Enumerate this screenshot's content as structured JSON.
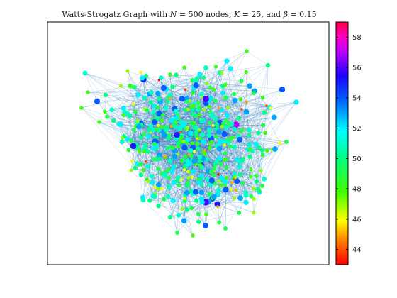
{
  "chart_data": {
    "type": "network-graph",
    "title": "Watts-Strogatz Graph with N = 500 nodes, K = 25, and β = 0.15",
    "parameters": {
      "N": 500,
      "K": 25,
      "beta": 0.15
    },
    "node_attribute": "degree",
    "colorbar": {
      "range": [
        43,
        59
      ],
      "ticks": [
        44,
        46,
        48,
        50,
        52,
        54,
        56,
        58
      ],
      "tick_labels": [
        "44",
        "46",
        "48",
        "50",
        "52",
        "54",
        "56",
        "58"
      ],
      "colormap": "hsv",
      "placement": "right"
    },
    "axes": {
      "show_ticks": false,
      "box": true
    },
    "edge_color": "#1f6fb5",
    "node_size_encodes": "degree"
  }
}
